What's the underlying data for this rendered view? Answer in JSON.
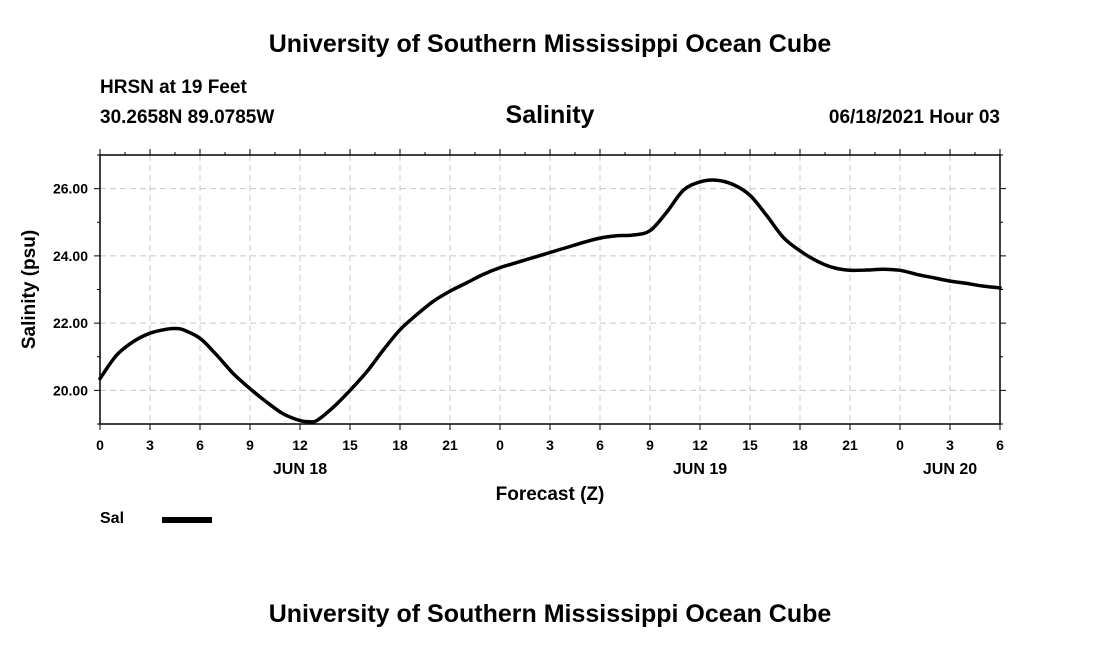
{
  "header": {
    "title_top": "University of Southern Mississippi Ocean Cube",
    "title_bottom": "University of Southern Mississippi Ocean Cube",
    "station": "HRSN at 19 Feet",
    "coords": "30.2658N  89.0785W",
    "datestamp": "06/18/2021 Hour 03"
  },
  "legend": {
    "label": "Sal"
  },
  "chart_data": {
    "type": "line",
    "title": "Salinity",
    "xlabel": "Forecast (Z)",
    "ylabel": "Salinity (psu)",
    "xlim": [
      0,
      54
    ],
    "ylim": [
      19.0,
      27.0
    ],
    "grid": true,
    "x_ticks": [
      {
        "x": 0,
        "label": "0"
      },
      {
        "x": 3,
        "label": "3"
      },
      {
        "x": 6,
        "label": "6"
      },
      {
        "x": 9,
        "label": "9"
      },
      {
        "x": 12,
        "label": "12"
      },
      {
        "x": 15,
        "label": "15"
      },
      {
        "x": 18,
        "label": "18"
      },
      {
        "x": 21,
        "label": "21"
      },
      {
        "x": 24,
        "label": "0"
      },
      {
        "x": 27,
        "label": "3"
      },
      {
        "x": 30,
        "label": "6"
      },
      {
        "x": 33,
        "label": "9"
      },
      {
        "x": 36,
        "label": "12"
      },
      {
        "x": 39,
        "label": "15"
      },
      {
        "x": 42,
        "label": "18"
      },
      {
        "x": 45,
        "label": "21"
      },
      {
        "x": 48,
        "label": "0"
      },
      {
        "x": 51,
        "label": "3"
      },
      {
        "x": 54,
        "label": "6"
      }
    ],
    "day_labels": [
      {
        "x": 12,
        "label": "JUN 18"
      },
      {
        "x": 36,
        "label": "JUN 19"
      },
      {
        "x": 51,
        "label": "JUN 20"
      }
    ],
    "y_ticks": [
      {
        "y": 20,
        "label": "20.00"
      },
      {
        "y": 22,
        "label": "22.00"
      },
      {
        "y": 24,
        "label": "24.00"
      },
      {
        "y": 26,
        "label": "26.00"
      }
    ],
    "series": [
      {
        "name": "Sal",
        "x": [
          0,
          1,
          2,
          3,
          4,
          4.5,
          5,
          6,
          7,
          8,
          9,
          10,
          11,
          12,
          12.5,
          13,
          14,
          15,
          16,
          17,
          18,
          19,
          20,
          21,
          22,
          23,
          24,
          25,
          26,
          27,
          28,
          29,
          30,
          31,
          32,
          33,
          34,
          35,
          36,
          37,
          38,
          39,
          40,
          41,
          42,
          43,
          44,
          45,
          46,
          47,
          48,
          49,
          50,
          51,
          52,
          53,
          54
        ],
        "values": [
          20.35,
          21.05,
          21.45,
          21.7,
          21.82,
          21.84,
          21.8,
          21.55,
          21.05,
          20.5,
          20.05,
          19.65,
          19.3,
          19.1,
          19.07,
          19.1,
          19.5,
          20.0,
          20.55,
          21.2,
          21.8,
          22.25,
          22.65,
          22.95,
          23.2,
          23.45,
          23.65,
          23.8,
          23.95,
          24.1,
          24.25,
          24.4,
          24.53,
          24.6,
          24.62,
          24.75,
          25.3,
          25.95,
          26.2,
          26.25,
          26.12,
          25.8,
          25.2,
          24.55,
          24.15,
          23.85,
          23.65,
          23.57,
          23.58,
          23.6,
          23.57,
          23.45,
          23.35,
          23.25,
          23.18,
          23.1,
          23.05
        ]
      }
    ]
  }
}
